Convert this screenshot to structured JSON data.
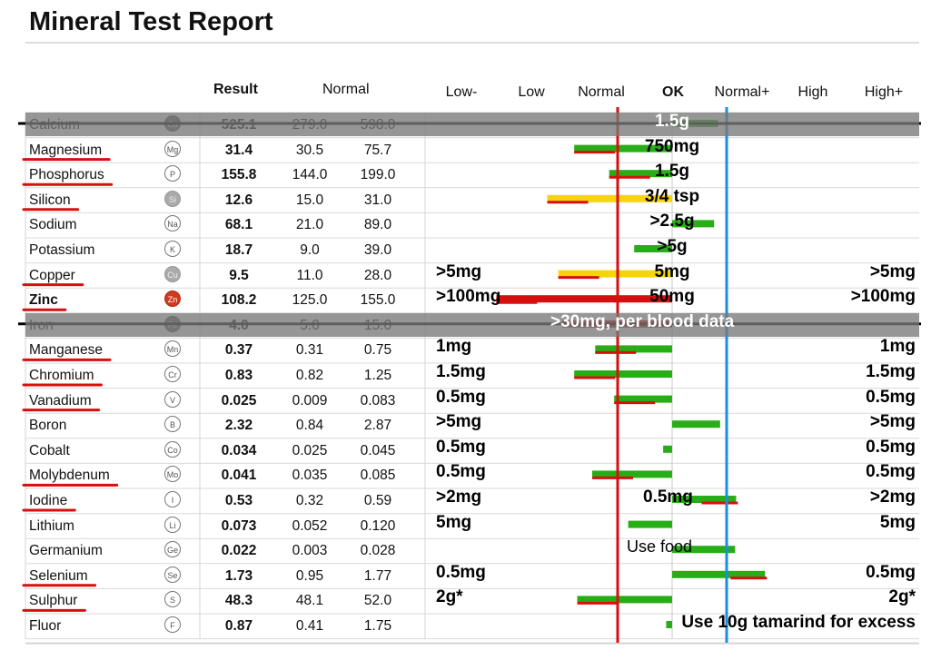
{
  "title": "Mineral Test Report",
  "headers": {
    "result": "Result",
    "normal": "Normal"
  },
  "chart_data": {
    "type": "bar",
    "scale_labels": [
      "Low-",
      "Low",
      "Normal",
      "OK",
      "Normal+",
      "High",
      "High+"
    ],
    "bold_scale_label": "OK",
    "rows": [
      {
        "name": "Calcium",
        "symbol": "Ca",
        "result": "525.1",
        "low": "279.0",
        "high": "598.0",
        "bar": 0.46,
        "color": "green",
        "bold": false,
        "underline": false,
        "struck": true,
        "sym_style": "dk"
      },
      {
        "name": "Magnesium",
        "symbol": "Mg",
        "result": "31.4",
        "low": "30.5",
        "high": "75.7",
        "bar": -0.98,
        "color": "green",
        "bold": false,
        "underline": true,
        "struck": false,
        "sym_style": ""
      },
      {
        "name": "Phosphorus",
        "symbol": "P",
        "result": "155.8",
        "low": "144.0",
        "high": "199.0",
        "bar": -0.63,
        "color": "green",
        "bold": false,
        "underline": true,
        "struck": false,
        "sym_style": ""
      },
      {
        "name": "Silicon",
        "symbol": "Si",
        "result": "12.6",
        "low": "15.0",
        "high": "31.0",
        "bar": -1.25,
        "color": "yellow",
        "bold": false,
        "underline": true,
        "struck": false,
        "sym_style": "g"
      },
      {
        "name": "Sodium",
        "symbol": "Na",
        "result": "68.1",
        "low": "21.0",
        "high": "89.0",
        "bar": 0.42,
        "color": "green",
        "bold": false,
        "underline": false,
        "struck": false,
        "sym_style": ""
      },
      {
        "name": "Potassium",
        "symbol": "K",
        "result": "18.7",
        "low": "9.0",
        "high": "39.0",
        "bar": -0.38,
        "color": "green",
        "bold": false,
        "underline": false,
        "struck": false,
        "sym_style": ""
      },
      {
        "name": "Copper",
        "symbol": "Cu",
        "result": "9.5",
        "low": "11.0",
        "high": "28.0",
        "bar": -1.14,
        "color": "yellow",
        "bold": false,
        "underline": true,
        "struck": false,
        "sym_style": "g"
      },
      {
        "name": "Zinc",
        "symbol": "Zn",
        "result": "108.2",
        "low": "125.0",
        "high": "155.0",
        "bar": -1.76,
        "color": "red",
        "bold": true,
        "underline": true,
        "struck": false,
        "sym_style": "r"
      },
      {
        "name": "Iron",
        "symbol": "Fe",
        "result": "4.0",
        "low": "5.0",
        "high": "15.0",
        "bar": -1.1,
        "color": "red",
        "bold": false,
        "underline": false,
        "struck": true,
        "sym_style": "dk"
      },
      {
        "name": "Manganese",
        "symbol": "Mn",
        "result": "0.37",
        "low": "0.31",
        "high": "0.75",
        "bar": -0.77,
        "color": "green",
        "bold": false,
        "underline": true,
        "struck": false,
        "sym_style": ""
      },
      {
        "name": "Chromium",
        "symbol": "Cr",
        "result": "0.83",
        "low": "0.82",
        "high": "1.25",
        "bar": -0.98,
        "color": "green",
        "bold": false,
        "underline": true,
        "struck": false,
        "sym_style": ""
      },
      {
        "name": "Vanadium",
        "symbol": "V",
        "result": "0.025",
        "low": "0.009",
        "high": "0.083",
        "bar": -0.58,
        "color": "green",
        "bold": false,
        "underline": true,
        "struck": false,
        "sym_style": ""
      },
      {
        "name": "Boron",
        "symbol": "B",
        "result": "2.32",
        "low": "0.84",
        "high": "2.87",
        "bar": 0.48,
        "color": "green",
        "bold": false,
        "underline": false,
        "struck": false,
        "sym_style": ""
      },
      {
        "name": "Cobalt",
        "symbol": "Co",
        "result": "0.034",
        "low": "0.025",
        "high": "0.045",
        "bar": -0.09,
        "color": "green",
        "bold": false,
        "underline": false,
        "struck": false,
        "sym_style": ""
      },
      {
        "name": "Molybdenum",
        "symbol": "Mo",
        "result": "0.041",
        "low": "0.035",
        "high": "0.085",
        "bar": -0.8,
        "color": "green",
        "bold": false,
        "underline": true,
        "struck": false,
        "sym_style": ""
      },
      {
        "name": "Iodine",
        "symbol": "I",
        "result": "0.53",
        "low": "0.32",
        "high": "0.59",
        "bar": 0.64,
        "color": "green",
        "bold": false,
        "underline": true,
        "struck": false,
        "sym_style": ""
      },
      {
        "name": "Lithium",
        "symbol": "Li",
        "result": "0.073",
        "low": "0.052",
        "high": "0.120",
        "bar": -0.44,
        "color": "green",
        "bold": false,
        "underline": false,
        "struck": false,
        "sym_style": ""
      },
      {
        "name": "Germanium",
        "symbol": "Ge",
        "result": "0.022",
        "low": "0.003",
        "high": "0.028",
        "bar": 0.63,
        "color": "green",
        "bold": false,
        "underline": false,
        "struck": false,
        "sym_style": ""
      },
      {
        "name": "Selenium",
        "symbol": "Se",
        "result": "1.73",
        "low": "0.95",
        "high": "1.77",
        "bar": 0.93,
        "color": "green",
        "bold": false,
        "underline": true,
        "struck": false,
        "sym_style": ""
      },
      {
        "name": "Sulphur",
        "symbol": "S",
        "result": "48.3",
        "low": "48.1",
        "high": "52.0",
        "bar": -0.95,
        "color": "green",
        "bold": false,
        "underline": true,
        "struck": false,
        "sym_style": ""
      },
      {
        "name": "Fluor",
        "symbol": "F",
        "result": "0.87",
        "low": "0.41",
        "high": "1.75",
        "bar": -0.06,
        "color": "green",
        "bold": false,
        "underline": false,
        "struck": false,
        "sym_style": ""
      }
    ]
  },
  "annotations": [
    {
      "row": 0,
      "text": "1.5g",
      "pos": "mid",
      "white": true
    },
    {
      "row": 1,
      "text": "750mg",
      "pos": "mid",
      "white": false
    },
    {
      "row": 2,
      "text": "1.5g",
      "pos": "mid",
      "white": false
    },
    {
      "row": 3,
      "text": "3/4 tsp",
      "pos": "mid",
      "white": false
    },
    {
      "row": 4,
      "text": ">2.5g",
      "pos": "mid",
      "white": false
    },
    {
      "row": 5,
      "text": ">5g",
      "pos": "mid",
      "white": false
    },
    {
      "row": 6,
      "text": ">5mg",
      "pos": "left",
      "white": false
    },
    {
      "row": 6,
      "text": "5mg",
      "pos": "mid",
      "white": false
    },
    {
      "row": 6,
      "text": ">5mg",
      "pos": "right",
      "white": false
    },
    {
      "row": 7,
      "text": ">100mg",
      "pos": "left",
      "white": false
    },
    {
      "row": 7,
      "text": "50mg",
      "pos": "mid",
      "white": false
    },
    {
      "row": 7,
      "text": ">100mg",
      "pos": "right",
      "white": false
    },
    {
      "row": 8,
      "text": ">30mg, per blood data",
      "pos": "band",
      "white": true
    },
    {
      "row": 9,
      "text": "1mg",
      "pos": "left",
      "white": false
    },
    {
      "row": 9,
      "text": "1mg",
      "pos": "right",
      "white": false
    },
    {
      "row": 10,
      "text": "1.5mg",
      "pos": "left",
      "white": false
    },
    {
      "row": 10,
      "text": "1.5mg",
      "pos": "right",
      "white": false
    },
    {
      "row": 11,
      "text": "0.5mg",
      "pos": "left",
      "white": false
    },
    {
      "row": 11,
      "text": "0.5mg",
      "pos": "right",
      "white": false
    },
    {
      "row": 12,
      "text": ">5mg",
      "pos": "left",
      "white": false
    },
    {
      "row": 12,
      "text": ">5mg",
      "pos": "right",
      "white": false
    },
    {
      "row": 13,
      "text": "0.5mg",
      "pos": "left",
      "white": false
    },
    {
      "row": 13,
      "text": "0.5mg",
      "pos": "right",
      "white": false
    },
    {
      "row": 14,
      "text": "0.5mg",
      "pos": "left",
      "white": false
    },
    {
      "row": 14,
      "text": "0.5mg",
      "pos": "right",
      "white": false
    },
    {
      "row": 15,
      "text": ">2mg",
      "pos": "left",
      "white": false
    },
    {
      "row": 15,
      "text": "0.5mg",
      "pos": "midleft",
      "white": false
    },
    {
      "row": 15,
      "text": ">2mg",
      "pos": "right",
      "white": false
    },
    {
      "row": 16,
      "text": "5mg",
      "pos": "left",
      "white": false
    },
    {
      "row": 16,
      "text": "5mg",
      "pos": "right",
      "white": false
    },
    {
      "row": 17,
      "text": "Use food",
      "pos": "food",
      "white": false
    },
    {
      "row": 18,
      "text": "0.5mg",
      "pos": "left",
      "white": false
    },
    {
      "row": 18,
      "text": "0.5mg",
      "pos": "right",
      "white": false
    },
    {
      "row": 19,
      "text": "2g*",
      "pos": "left",
      "white": false
    },
    {
      "row": 19,
      "text": "2g*",
      "pos": "right",
      "white": false
    },
    {
      "row": 20,
      "text": "Use 10g tamarind for excess",
      "pos": "tamarind",
      "white": false
    }
  ]
}
